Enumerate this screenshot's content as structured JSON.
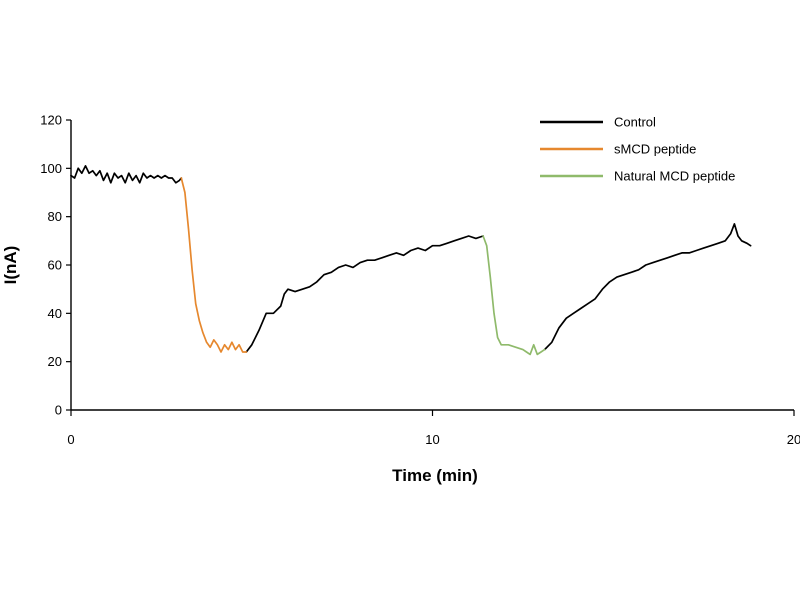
{
  "chart_data": {
    "type": "line",
    "title": "",
    "xlabel": "Time (min)",
    "ylabel": "I(nA)",
    "xlim": [
      0,
      20
    ],
    "ylim": [
      0,
      120
    ],
    "xticks": [
      0,
      10,
      20
    ],
    "yticks": [
      0,
      20,
      40,
      60,
      80,
      100,
      120
    ],
    "grid": false,
    "legend_position": "top-right",
    "series": [
      {
        "name": "Control",
        "color": "#000000",
        "segments": [
          [
            [
              0.0,
              97
            ],
            [
              0.1,
              96
            ],
            [
              0.2,
              100
            ],
            [
              0.3,
              98
            ],
            [
              0.4,
              101
            ],
            [
              0.5,
              98
            ],
            [
              0.6,
              99
            ],
            [
              0.7,
              97
            ],
            [
              0.8,
              99
            ],
            [
              0.9,
              95
            ],
            [
              1.0,
              98
            ],
            [
              1.1,
              94
            ],
            [
              1.2,
              98
            ],
            [
              1.3,
              96
            ],
            [
              1.4,
              97
            ],
            [
              1.5,
              94
            ],
            [
              1.6,
              98
            ],
            [
              1.7,
              95
            ],
            [
              1.8,
              97
            ],
            [
              1.9,
              94
            ],
            [
              2.0,
              98
            ],
            [
              2.1,
              96
            ],
            [
              2.2,
              97
            ],
            [
              2.3,
              96
            ],
            [
              2.4,
              97
            ],
            [
              2.5,
              96
            ],
            [
              2.6,
              97
            ],
            [
              2.7,
              96
            ],
            [
              2.8,
              96
            ],
            [
              2.9,
              94
            ],
            [
              3.0,
              95
            ],
            [
              3.05,
              96
            ]
          ],
          [
            [
              4.85,
              24
            ],
            [
              5.0,
              27
            ],
            [
              5.2,
              33
            ],
            [
              5.4,
              40
            ],
            [
              5.6,
              40
            ],
            [
              5.8,
              43
            ],
            [
              5.9,
              48
            ],
            [
              6.0,
              50
            ],
            [
              6.2,
              49
            ],
            [
              6.4,
              50
            ],
            [
              6.6,
              51
            ],
            [
              6.8,
              53
            ],
            [
              7.0,
              56
            ],
            [
              7.2,
              57
            ],
            [
              7.4,
              59
            ],
            [
              7.6,
              60
            ],
            [
              7.8,
              59
            ],
            [
              8.0,
              61
            ],
            [
              8.2,
              62
            ],
            [
              8.4,
              62
            ],
            [
              8.6,
              63
            ],
            [
              8.8,
              64
            ],
            [
              9.0,
              65
            ],
            [
              9.2,
              64
            ],
            [
              9.4,
              66
            ],
            [
              9.6,
              67
            ],
            [
              9.8,
              66
            ],
            [
              10.0,
              68
            ],
            [
              10.2,
              68
            ],
            [
              10.4,
              69
            ],
            [
              10.6,
              70
            ],
            [
              10.8,
              71
            ],
            [
              11.0,
              72
            ],
            [
              11.2,
              71
            ],
            [
              11.4,
              72
            ]
          ],
          [
            [
              13.1,
              25
            ],
            [
              13.3,
              28
            ],
            [
              13.5,
              34
            ],
            [
              13.7,
              38
            ],
            [
              13.9,
              40
            ],
            [
              14.1,
              42
            ],
            [
              14.3,
              44
            ],
            [
              14.5,
              46
            ],
            [
              14.7,
              50
            ],
            [
              14.9,
              53
            ],
            [
              15.1,
              55
            ],
            [
              15.3,
              56
            ],
            [
              15.5,
              57
            ],
            [
              15.7,
              58
            ],
            [
              15.9,
              60
            ],
            [
              16.1,
              61
            ],
            [
              16.3,
              62
            ],
            [
              16.5,
              63
            ],
            [
              16.7,
              64
            ],
            [
              16.9,
              65
            ],
            [
              17.1,
              65
            ],
            [
              17.3,
              66
            ],
            [
              17.5,
              67
            ],
            [
              17.7,
              68
            ],
            [
              17.9,
              69
            ],
            [
              18.1,
              70
            ],
            [
              18.25,
              73
            ],
            [
              18.35,
              77
            ],
            [
              18.45,
              72
            ],
            [
              18.55,
              70
            ],
            [
              18.7,
              69
            ],
            [
              18.8,
              68
            ]
          ]
        ]
      },
      {
        "name": "sMCD peptide",
        "color": "#e6882e",
        "segments": [
          [
            [
              3.05,
              96
            ],
            [
              3.15,
              90
            ],
            [
              3.25,
              75
            ],
            [
              3.35,
              58
            ],
            [
              3.45,
              44
            ],
            [
              3.55,
              37
            ],
            [
              3.65,
              32
            ],
            [
              3.75,
              28
            ],
            [
              3.85,
              26
            ],
            [
              3.95,
              29
            ],
            [
              4.05,
              27
            ],
            [
              4.15,
              24
            ],
            [
              4.25,
              27
            ],
            [
              4.35,
              25
            ],
            [
              4.45,
              28
            ],
            [
              4.55,
              25
            ],
            [
              4.65,
              27
            ],
            [
              4.75,
              24
            ],
            [
              4.85,
              24
            ]
          ]
        ]
      },
      {
        "name": "Natural MCD peptide",
        "color": "#8fba6b",
        "segments": [
          [
            [
              11.4,
              72
            ],
            [
              11.5,
              68
            ],
            [
              11.6,
              55
            ],
            [
              11.7,
              40
            ],
            [
              11.8,
              30
            ],
            [
              11.9,
              27
            ],
            [
              12.1,
              27
            ],
            [
              12.3,
              26
            ],
            [
              12.5,
              25
            ],
            [
              12.6,
              24
            ],
            [
              12.7,
              23
            ],
            [
              12.8,
              27
            ],
            [
              12.9,
              23
            ],
            [
              13.0,
              24
            ],
            [
              13.1,
              25
            ]
          ]
        ]
      }
    ]
  }
}
